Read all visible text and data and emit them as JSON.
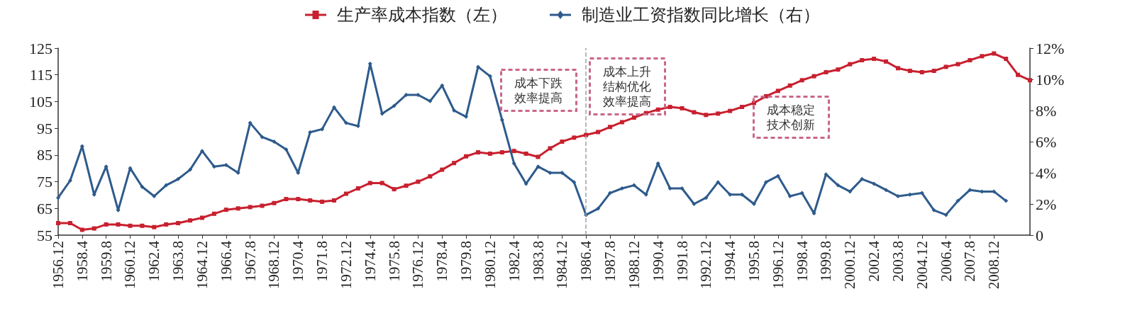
{
  "chart_data": {
    "type": "line",
    "categories": [
      "1956.12",
      null,
      "1958.4",
      null,
      "1959.8",
      null,
      "1960.12",
      null,
      "1962.4",
      null,
      "1963.8",
      null,
      "1964.12",
      null,
      "1966.4",
      null,
      "1967.8",
      null,
      "1968.12",
      null,
      "1970.4",
      null,
      "1971.8",
      null,
      "1972.12",
      null,
      "1974.4",
      null,
      "1975.8",
      null,
      "1976.12",
      null,
      "1978.4",
      null,
      "1979.8",
      null,
      "1980.12",
      null,
      "1982.4",
      null,
      "1983.8",
      null,
      "1984.12",
      null,
      "1986.4",
      null,
      "1987.8",
      null,
      "1988.12",
      null,
      "1990.4",
      null,
      "1991.8",
      null,
      "1992.12",
      null,
      "1994.4",
      null,
      "1995.8",
      null,
      "1996.12",
      null,
      "1998.4",
      null,
      "1999.8",
      null,
      "2000.12",
      null,
      "2002.4",
      null,
      "2003.8",
      null,
      "2004.12",
      null,
      "2006.4",
      null,
      "2007.8",
      null,
      "2008.12",
      null,
      null,
      null
    ],
    "series": [
      {
        "name": "生产率成本指数（左）",
        "color": "#c8202f",
        "marker": "square",
        "values": [
          59.5,
          59.5,
          57,
          57.5,
          59,
          59,
          58.5,
          58.5,
          58,
          59,
          59.5,
          60.5,
          61.5,
          63,
          64.5,
          65,
          65.5,
          66,
          67,
          68.5,
          68.5,
          68,
          67.5,
          68,
          70.5,
          72.5,
          74.5,
          74.5,
          72.2,
          73.5,
          75,
          77,
          79.5,
          82,
          84.5,
          86,
          85.5,
          86,
          86.5,
          85.5,
          84.3,
          87.5,
          90,
          91.5,
          92.5,
          93.6,
          95.5,
          97.3,
          99,
          100.7,
          102,
          103,
          102.5,
          101,
          100,
          100.5,
          101.5,
          103,
          104.5,
          107,
          109,
          111,
          113,
          114.5,
          116,
          117,
          119,
          120.5,
          121,
          120,
          117.5,
          116.5,
          116,
          116.5,
          118,
          119,
          120.5,
          122,
          123,
          121,
          115,
          113
        ]
      },
      {
        "name": "制造业工资指数同比增长（右）",
        "color": "#2e5b8c",
        "marker": "diamond",
        "axis": "y2",
        "values": [
          2.4,
          3.5,
          5.7,
          2.6,
          4.4,
          1.6,
          4.3,
          3.1,
          2.5,
          3.2,
          3.6,
          4.2,
          5.4,
          4.4,
          4.5,
          4.0,
          7.2,
          6.3,
          6.0,
          5.5,
          4.0,
          6.6,
          6.8,
          8.2,
          7.2,
          7.0,
          11.0,
          7.8,
          8.3,
          9.0,
          9.0,
          8.6,
          9.6,
          8.0,
          7.6,
          10.8,
          10.2,
          7.4,
          4.6,
          3.3,
          4.4,
          4.0,
          4.0,
          3.4,
          1.3,
          1.7,
          2.7,
          3.0,
          3.2,
          2.6,
          4.6,
          3.0,
          3.0,
          2.0,
          2.4,
          3.4,
          2.6,
          2.6,
          2.0,
          3.4,
          3.8,
          2.5,
          2.7,
          1.4,
          3.9,
          3.2,
          2.8,
          3.6,
          3.3,
          2.9,
          2.5,
          2.6,
          2.7,
          1.6,
          1.3,
          2.2,
          2.9,
          2.8,
          2.8,
          2.2,
          null,
          null
        ]
      }
    ],
    "ylim": [
      55,
      125
    ],
    "yticks": [
      55,
      65,
      75,
      85,
      95,
      105,
      115,
      125
    ],
    "y2lim": [
      0,
      12
    ],
    "y2ticks": [
      0,
      {
        "value": 2,
        "label": "2%"
      },
      {
        "value": 4,
        "label": "4%"
      },
      {
        "value": 6,
        "label": "6%"
      },
      {
        "value": 8,
        "label": "8%"
      },
      {
        "value": 10,
        "label": "10%"
      },
      {
        "value": 12,
        "label": "12%"
      }
    ],
    "ref_lines": [
      {
        "axis": "x",
        "value": "1986.4",
        "color": "#9aa3a8",
        "line_style": "dashed"
      }
    ],
    "annotations": [
      "成本下跌效率提高",
      "成本上升结构优化效率提高",
      "成本稳定技术创新"
    ],
    "legend": "top"
  }
}
